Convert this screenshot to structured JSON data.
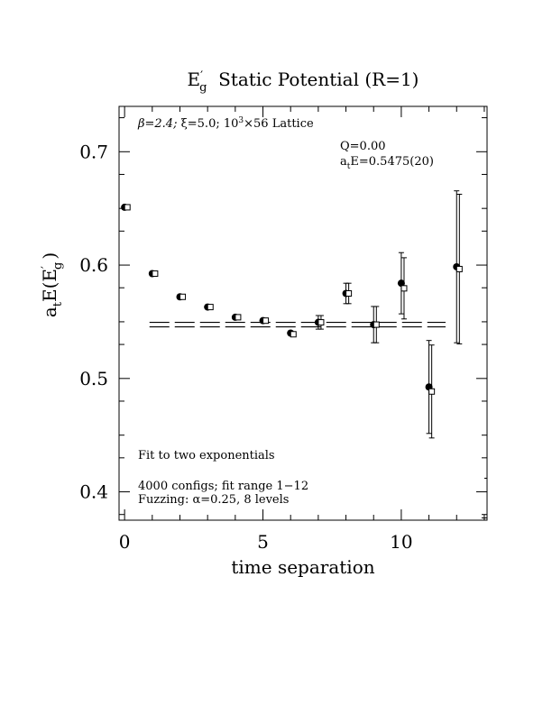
{
  "chart_data": {
    "type": "scatter",
    "title": {
      "main": "E",
      "sup": "′",
      "sub": "g",
      "rest": "  Static Potential (R=1)"
    },
    "xlabel": "time separation",
    "ylabel": {
      "a": "a",
      "a_sub": "t",
      "mid": "E(E",
      "sup": "′",
      "sub": "g",
      "end": ")"
    },
    "xlim": [
      -0.2,
      13.1
    ],
    "ylim": [
      0.375,
      0.74
    ],
    "x_ticks": [
      0,
      5,
      10
    ],
    "x_tick_labels": [
      "0",
      "5",
      "10"
    ],
    "y_ticks": [
      0.4,
      0.5,
      0.6,
      0.7
    ],
    "y_tick_labels": [
      "0.4",
      "0.5",
      "0.6",
      "0.7"
    ],
    "annotations": {
      "lattice": {
        "beta": "β=2.4; ",
        "xi": "ξ=5.0; ",
        "lat_a": "10",
        "lat_sup": "3",
        "lat_b": "×56 Lattice"
      },
      "q": "Q=0.00",
      "fit_result": {
        "a": "a",
        "a_sub": "t",
        "rest": "E=0.5475(20)"
      },
      "fit_type": "Fit to two exponentials",
      "configs": "4000 configs; fit range 1−12",
      "fuzzing": "Fuzzing: α=0.25, 8 levels"
    },
    "fit_band": {
      "x_range": [
        0.9,
        11.6
      ],
      "center": 0.5475,
      "error": 0.002
    },
    "series": [
      {
        "marker": "filled-circle",
        "points": [
          {
            "x": 0,
            "y": 0.651,
            "err": 0
          },
          {
            "x": 1,
            "y": 0.5925,
            "err": 0
          },
          {
            "x": 2,
            "y": 0.572,
            "err": 0
          },
          {
            "x": 3,
            "y": 0.563,
            "err": 0
          },
          {
            "x": 4,
            "y": 0.554,
            "err": 0
          },
          {
            "x": 5,
            "y": 0.551,
            "err": 0
          },
          {
            "x": 6,
            "y": 0.54,
            "err": 0
          },
          {
            "x": 7,
            "y": 0.5495,
            "err": 0.006
          },
          {
            "x": 8,
            "y": 0.575,
            "err": 0.009
          },
          {
            "x": 9,
            "y": 0.5475,
            "err": 0.016
          },
          {
            "x": 10,
            "y": 0.584,
            "err": 0.027
          },
          {
            "x": 11,
            "y": 0.4925,
            "err": 0.041
          },
          {
            "x": 12,
            "y": 0.5985,
            "err": 0.067
          },
          {
            "x": 13,
            "y": 0.37,
            "err": 0.007
          }
        ]
      },
      {
        "marker": "open-square",
        "points": [
          {
            "x": 0.1,
            "y": 0.651,
            "err": 0
          },
          {
            "x": 1.1,
            "y": 0.5925,
            "err": 0
          },
          {
            "x": 2.1,
            "y": 0.572,
            "err": 0
          },
          {
            "x": 3.1,
            "y": 0.563,
            "err": 0
          },
          {
            "x": 4.1,
            "y": 0.554,
            "err": 0
          },
          {
            "x": 5.1,
            "y": 0.551,
            "err": 0
          },
          {
            "x": 6.1,
            "y": 0.539,
            "err": 0
          },
          {
            "x": 7.1,
            "y": 0.5495,
            "err": 0.006
          },
          {
            "x": 8.1,
            "y": 0.575,
            "err": 0.009
          },
          {
            "x": 9.1,
            "y": 0.5475,
            "err": 0.016
          },
          {
            "x": 10.1,
            "y": 0.5795,
            "err": 0.027
          },
          {
            "x": 11.1,
            "y": 0.4885,
            "err": 0.041
          },
          {
            "x": 12.1,
            "y": 0.5965,
            "err": 0.066
          },
          {
            "x": 13.1,
            "y": 0.37,
            "err": 0.042
          }
        ]
      }
    ]
  }
}
